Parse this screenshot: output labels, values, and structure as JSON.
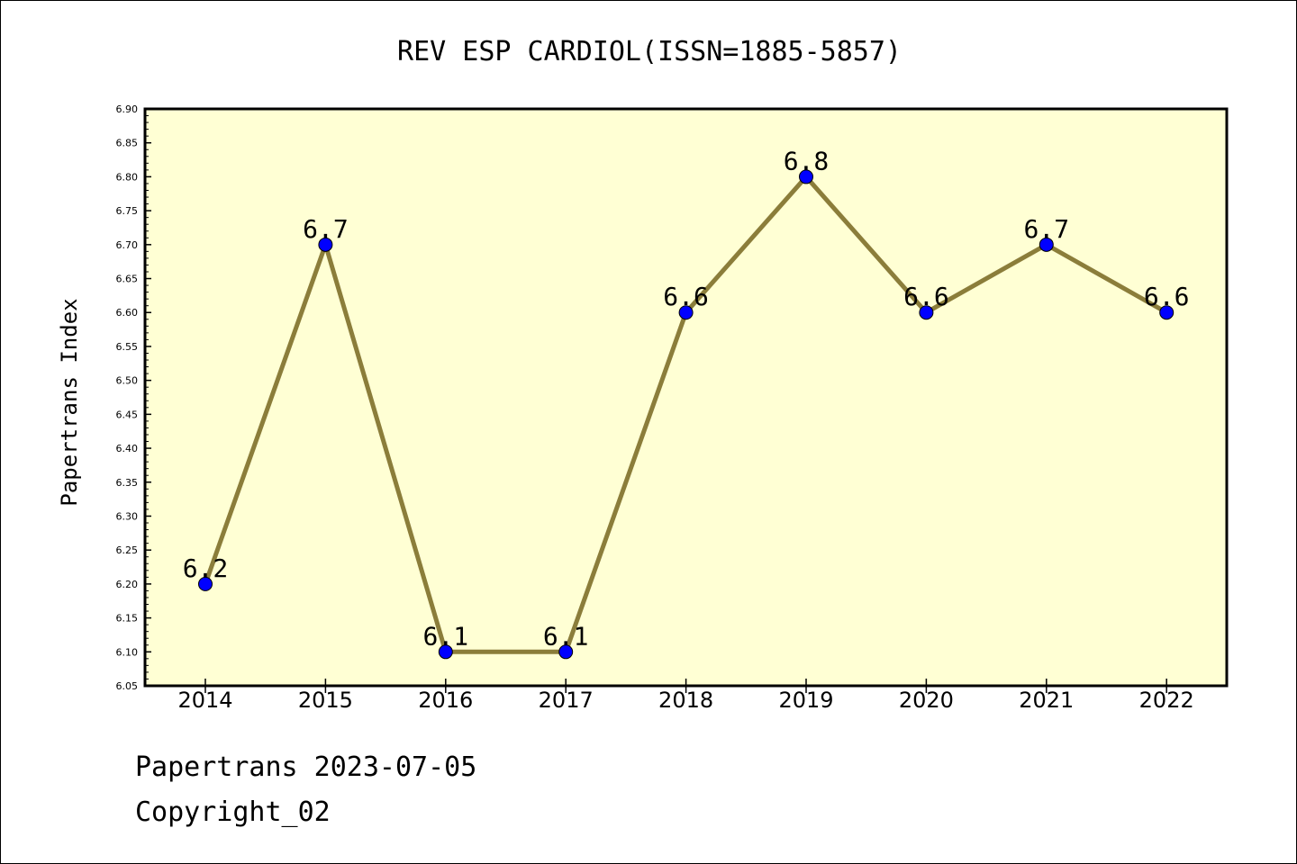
{
  "chart_data": {
    "type": "line",
    "title": "REV ESP CARDIOL(ISSN=1885-5857)",
    "xlabel": "",
    "ylabel": "Papertrans Index",
    "categories": [
      "2014",
      "2015",
      "2016",
      "2017",
      "2018",
      "2019",
      "2020",
      "2021",
      "2022"
    ],
    "series": [
      {
        "values": [
          6.2,
          6.7,
          6.1,
          6.1,
          6.6,
          6.8,
          6.6,
          6.7,
          6.6
        ],
        "data_labels": [
          "6.2",
          "6.7",
          "6.1",
          "6.1",
          "6.6",
          "6.8",
          "6.6",
          "6.7",
          "6.6"
        ],
        "line_color": "#8b7d3a",
        "marker_color": "#0000ff"
      }
    ],
    "ylim": [
      6.05,
      6.9
    ],
    "yticks": [
      "6.05",
      "6.10",
      "6.15",
      "6.20",
      "6.25",
      "6.30",
      "6.35",
      "6.40",
      "6.45",
      "6.50",
      "6.55",
      "6.60",
      "6.65",
      "6.70",
      "6.75",
      "6.80",
      "6.85",
      "6.90"
    ],
    "grid": false,
    "plot_background": "#ffffd4"
  },
  "footer": {
    "date_line": "Papertrans 2023-07-05",
    "copyright": "Copyright_02"
  }
}
